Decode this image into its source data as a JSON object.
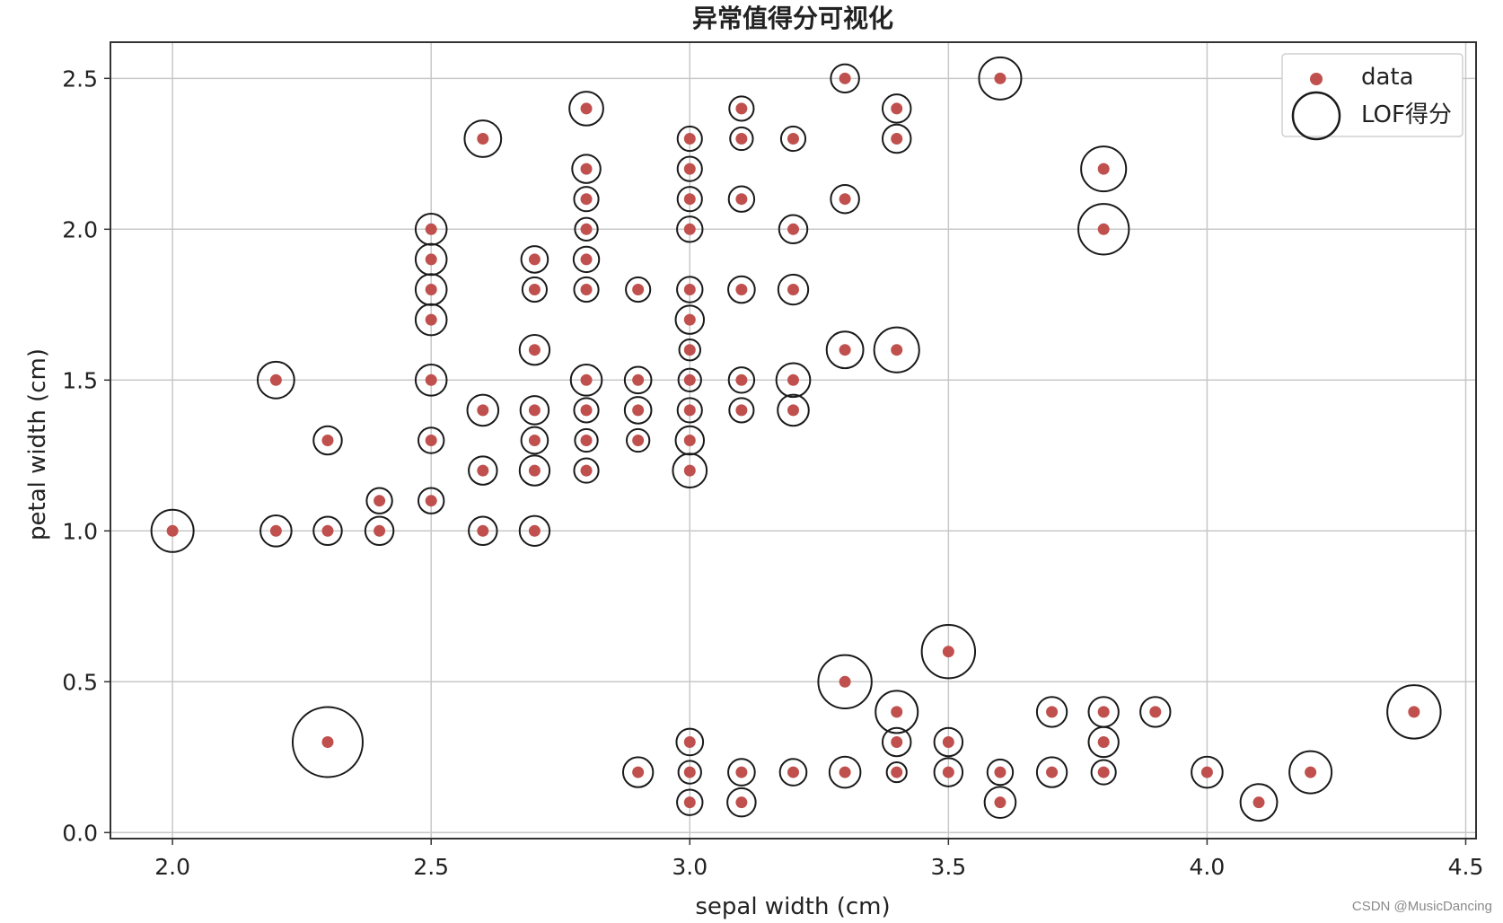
{
  "watermark": "CSDN @MusicDancing",
  "chart_data": {
    "type": "scatter",
    "title": "异常值得分可视化",
    "xlabel": "sepal width (cm)",
    "ylabel": "petal width (cm)",
    "xlim": [
      1.88,
      4.52
    ],
    "ylim": [
      -0.02,
      2.62
    ],
    "xticks": [
      "2.0",
      "2.5",
      "3.0",
      "3.5",
      "4.0",
      "4.5"
    ],
    "yticks": [
      "0.0",
      "0.5",
      "1.0",
      "1.5",
      "2.0",
      "2.5"
    ],
    "grid": true,
    "legend_position": "top-right",
    "legend": [
      "data",
      "LOF得分"
    ],
    "colors": {
      "point": "#c0504d",
      "circle": "#1a1a1a",
      "grid": "#c8c8c8"
    },
    "series": [
      {
        "name": "data",
        "points": [
          [
            2.0,
            1.0
          ],
          [
            2.2,
            1.5
          ],
          [
            2.2,
            1.0
          ],
          [
            2.3,
            1.3
          ],
          [
            2.3,
            1.0
          ],
          [
            2.3,
            0.3
          ],
          [
            2.4,
            1.1
          ],
          [
            2.4,
            1.0
          ],
          [
            2.5,
            2.0
          ],
          [
            2.5,
            1.9
          ],
          [
            2.5,
            1.8
          ],
          [
            2.5,
            1.7
          ],
          [
            2.5,
            1.5
          ],
          [
            2.5,
            1.3
          ],
          [
            2.5,
            1.1
          ],
          [
            2.6,
            2.3
          ],
          [
            2.6,
            1.4
          ],
          [
            2.6,
            1.2
          ],
          [
            2.6,
            1.0
          ],
          [
            2.7,
            1.9
          ],
          [
            2.7,
            1.8
          ],
          [
            2.7,
            1.6
          ],
          [
            2.7,
            1.4
          ],
          [
            2.7,
            1.3
          ],
          [
            2.7,
            1.2
          ],
          [
            2.7,
            1.0
          ],
          [
            2.8,
            2.4
          ],
          [
            2.8,
            2.2
          ],
          [
            2.8,
            2.1
          ],
          [
            2.8,
            2.0
          ],
          [
            2.8,
            1.9
          ],
          [
            2.8,
            1.8
          ],
          [
            2.8,
            1.5
          ],
          [
            2.8,
            1.4
          ],
          [
            2.8,
            1.3
          ],
          [
            2.8,
            1.2
          ],
          [
            2.9,
            1.8
          ],
          [
            2.9,
            1.5
          ],
          [
            2.9,
            1.4
          ],
          [
            2.9,
            1.3
          ],
          [
            2.9,
            0.2
          ],
          [
            3.0,
            2.3
          ],
          [
            3.0,
            2.2
          ],
          [
            3.0,
            2.1
          ],
          [
            3.0,
            2.0
          ],
          [
            3.0,
            1.8
          ],
          [
            3.0,
            1.7
          ],
          [
            3.0,
            1.6
          ],
          [
            3.0,
            1.5
          ],
          [
            3.0,
            1.4
          ],
          [
            3.0,
            1.3
          ],
          [
            3.0,
            1.2
          ],
          [
            3.0,
            0.3
          ],
          [
            3.0,
            0.2
          ],
          [
            3.0,
            0.1
          ],
          [
            3.1,
            2.4
          ],
          [
            3.1,
            2.3
          ],
          [
            3.1,
            2.1
          ],
          [
            3.1,
            1.8
          ],
          [
            3.1,
            1.5
          ],
          [
            3.1,
            1.4
          ],
          [
            3.1,
            0.2
          ],
          [
            3.1,
            0.1
          ],
          [
            3.2,
            2.3
          ],
          [
            3.2,
            2.0
          ],
          [
            3.2,
            1.8
          ],
          [
            3.2,
            1.5
          ],
          [
            3.2,
            1.4
          ],
          [
            3.2,
            0.2
          ],
          [
            3.3,
            2.5
          ],
          [
            3.3,
            2.1
          ],
          [
            3.3,
            1.6
          ],
          [
            3.3,
            0.5
          ],
          [
            3.3,
            0.2
          ],
          [
            3.4,
            2.4
          ],
          [
            3.4,
            2.3
          ],
          [
            3.4,
            1.6
          ],
          [
            3.4,
            0.4
          ],
          [
            3.4,
            0.3
          ],
          [
            3.4,
            0.2
          ],
          [
            3.5,
            0.6
          ],
          [
            3.5,
            0.3
          ],
          [
            3.5,
            0.2
          ],
          [
            3.6,
            2.5
          ],
          [
            3.6,
            0.2
          ],
          [
            3.6,
            0.1
          ],
          [
            3.7,
            0.4
          ],
          [
            3.7,
            0.2
          ],
          [
            3.8,
            2.2
          ],
          [
            3.8,
            2.0
          ],
          [
            3.8,
            0.4
          ],
          [
            3.8,
            0.3
          ],
          [
            3.8,
            0.2
          ],
          [
            3.9,
            0.4
          ],
          [
            4.0,
            0.2
          ],
          [
            4.1,
            0.1
          ],
          [
            4.2,
            0.2
          ],
          [
            4.4,
            0.4
          ]
        ]
      },
      {
        "name": "LOF得分",
        "scores": [
          0.5,
          0.4,
          0.3,
          0.25,
          0.25,
          1.0,
          0.2,
          0.25,
          0.3,
          0.3,
          0.3,
          0.3,
          0.3,
          0.2,
          0.2,
          0.4,
          0.3,
          0.25,
          0.25,
          0.22,
          0.18,
          0.28,
          0.25,
          0.22,
          0.28,
          0.28,
          0.35,
          0.25,
          0.18,
          0.15,
          0.2,
          0.18,
          0.3,
          0.18,
          0.15,
          0.18,
          0.18,
          0.22,
          0.22,
          0.15,
          0.28,
          0.18,
          0.18,
          0.18,
          0.2,
          0.2,
          0.25,
          0.12,
          0.15,
          0.18,
          0.25,
          0.35,
          0.22,
          0.15,
          0.2,
          0.18,
          0.15,
          0.2,
          0.22,
          0.2,
          0.18,
          0.22,
          0.25,
          0.18,
          0.25,
          0.28,
          0.35,
          0.3,
          0.22,
          0.25,
          0.25,
          0.4,
          0.7,
          0.3,
          0.25,
          0.25,
          0.55,
          0.5,
          0.25,
          0.1,
          0.7,
          0.25,
          0.25,
          0.5,
          0.2,
          0.3,
          0.28,
          0.28,
          0.55,
          0.65,
          0.28,
          0.28,
          0.18,
          0.28,
          0.3,
          0.4,
          0.5,
          0.7
        ]
      }
    ]
  }
}
